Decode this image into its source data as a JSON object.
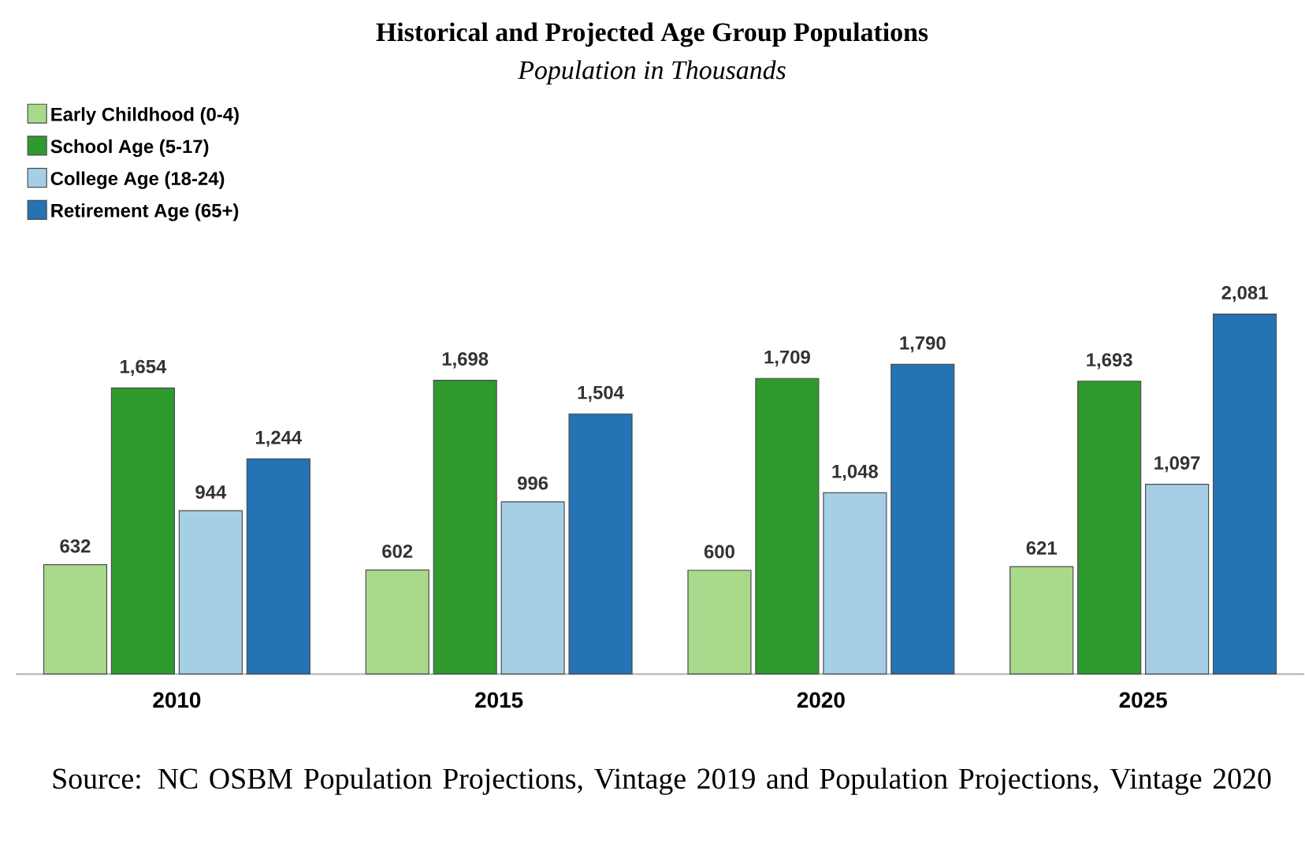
{
  "chart_data": {
    "type": "bar",
    "title": "Historical and Projected Age Group Populations",
    "subtitle": "Population in Thousands",
    "categories": [
      "2010",
      "2015",
      "2020",
      "2025"
    ],
    "series": [
      {
        "name": "Early Childhood (0-4)",
        "color": "#a9d98b",
        "values": [
          632,
          602,
          600,
          621
        ],
        "value_labels": [
          "632",
          "602",
          "600",
          "621"
        ]
      },
      {
        "name": "School Age (5-17)",
        "color": "#2e9a2e",
        "values": [
          1654,
          1698,
          1709,
          1693
        ],
        "value_labels": [
          "1,654",
          "1,698",
          "1,709",
          "1,693"
        ]
      },
      {
        "name": "College Age (18-24)",
        "color": "#a6cfe6",
        "values": [
          944,
          996,
          1048,
          1097
        ],
        "value_labels": [
          "944",
          "996",
          "1,048",
          "1,097"
        ]
      },
      {
        "name": "Retirement Age (65+)",
        "color": "#2373b5",
        "values": [
          1244,
          1504,
          1790,
          2081
        ],
        "value_labels": [
          "1,244",
          "1,504",
          "1,790",
          "2,081"
        ]
      }
    ],
    "legend": "top left",
    "annotations": [
      "Source: NC OSBM Population Projections, Vintage 2019 and Population Projections, Vintage 2020"
    ]
  }
}
